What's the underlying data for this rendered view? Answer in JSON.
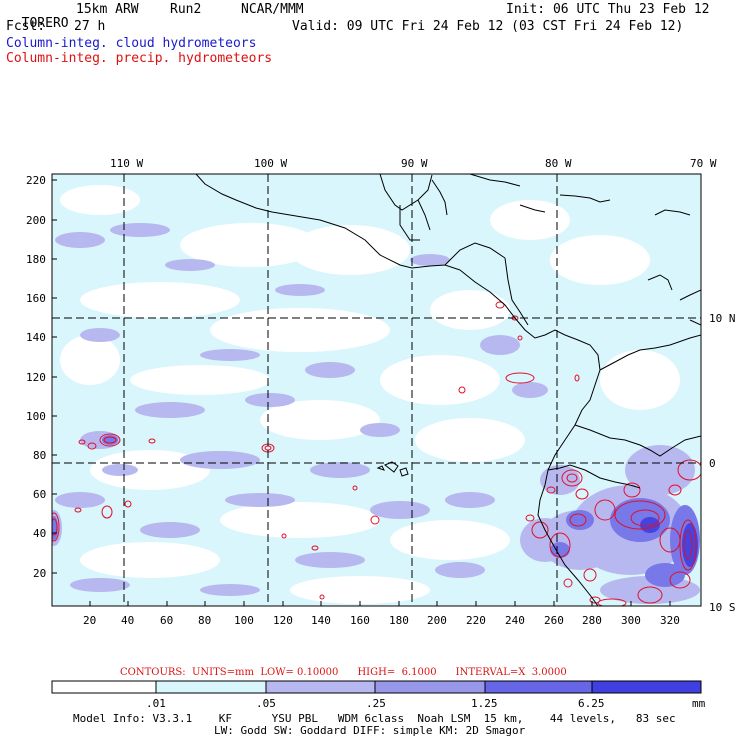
{
  "header": {
    "model": "TORERO",
    "resolution": "15km ARW",
    "run": "Run2",
    "org": "NCAR/MMM",
    "init": "Init: 06 UTC Thu 23 Feb 12",
    "fcst_label": "Fcst:",
    "fcst_value": "27 h",
    "valid": "Valid: 09 UTC Fri 24 Feb 12 (03 CST Fri 24 Feb 12)",
    "field1": "Column-integ. cloud hydrometeors",
    "field2": "Column-integ. precip. hydrometeors"
  },
  "colors": {
    "field1": "#1a1acc",
    "field2": "#dd1111",
    "cloud_lvl1": "#d9f6fc",
    "cloud_lvl2": "#b8b8f0",
    "cloud_lvl3": "#9898ea",
    "cloud_lvl4": "#6666e6",
    "cloud_lvl5": "#4040e0",
    "precip": "#e0102a"
  },
  "axes": {
    "top_lon": [
      "110 W",
      "100 W",
      "90 W",
      "80 W",
      "70 W"
    ],
    "right_lat": [
      "10 N",
      "0",
      "10 S"
    ],
    "left_ticks": [
      "220",
      "200",
      "180",
      "160",
      "140",
      "120",
      "100",
      "80",
      "60",
      "40",
      "20"
    ],
    "bottom_ticks": [
      "20",
      "40",
      "60",
      "80",
      "100",
      "120",
      "140",
      "160",
      "180",
      "200",
      "220",
      "240",
      "260",
      "280",
      "300",
      "320"
    ]
  },
  "contours": {
    "text": "CONTOURS:  UNITS=mm  LOW= 0.10000      HIGH=  6.1000      INTERVAL=X  3.0000"
  },
  "colorbar": {
    "labels": [
      ".01",
      ".05",
      ".25",
      "1.25",
      "6.25"
    ],
    "unit": "mm"
  },
  "footer": {
    "line1": "Model Info: V3.3.1    KF      YSU PBL   WDM 6class  Noah LSM  15 km,    44 levels,   83 sec",
    "line2": "LW: Godd SW: Goddard DIFF: simple KM: 2D Smagor"
  }
}
